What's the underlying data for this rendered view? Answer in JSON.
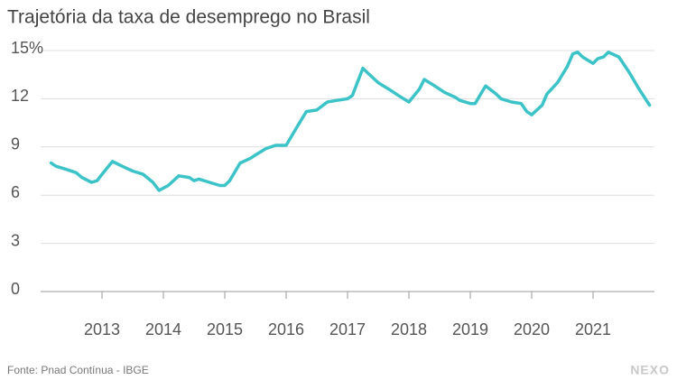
{
  "chart_data": {
    "type": "line",
    "title": "Trajetória da taxa de desemprego no Brasil",
    "source": "Fonte: Pnad Contínua - IBGE",
    "brand": "NEXO",
    "x": [
      2012.17,
      2012.25,
      2012.42,
      2012.58,
      2012.67,
      2012.83,
      2012.92,
      2013.0,
      2013.17,
      2013.33,
      2013.5,
      2013.67,
      2013.83,
      2013.93,
      2014.08,
      2014.25,
      2014.42,
      2014.5,
      2014.58,
      2014.75,
      2014.92,
      2015.0,
      2015.08,
      2015.25,
      2015.42,
      2015.5,
      2015.67,
      2015.83,
      2016.0,
      2016.17,
      2016.33,
      2016.5,
      2016.67,
      2016.83,
      2017.0,
      2017.08,
      2017.25,
      2017.33,
      2017.5,
      2017.67,
      2017.83,
      2018.0,
      2018.17,
      2018.25,
      2018.42,
      2018.58,
      2018.75,
      2018.83,
      2019.0,
      2019.08,
      2019.17,
      2019.25,
      2019.42,
      2019.5,
      2019.67,
      2019.83,
      2019.92,
      2020.0,
      2020.17,
      2020.25,
      2020.42,
      2020.58,
      2020.67,
      2020.75,
      2020.83,
      2021.0,
      2021.08,
      2021.17,
      2021.25,
      2021.42,
      2021.58,
      2021.75,
      2021.92
    ],
    "series": [
      {
        "name": "Taxa de desemprego",
        "color": "#3cc3c8",
        "values": [
          8.0,
          7.8,
          7.6,
          7.4,
          7.1,
          6.8,
          6.9,
          7.3,
          8.1,
          7.8,
          7.5,
          7.3,
          6.8,
          6.3,
          6.6,
          7.2,
          7.1,
          6.9,
          7.0,
          6.8,
          6.6,
          6.6,
          6.9,
          8.0,
          8.3,
          8.5,
          8.9,
          9.1,
          9.1,
          10.2,
          11.2,
          11.3,
          11.8,
          11.9,
          12.0,
          12.2,
          13.9,
          13.6,
          13.0,
          12.6,
          12.2,
          11.8,
          12.6,
          13.2,
          12.8,
          12.4,
          12.1,
          11.9,
          11.7,
          11.7,
          12.3,
          12.8,
          12.3,
          12.0,
          11.8,
          11.7,
          11.2,
          11.0,
          11.6,
          12.3,
          13.0,
          14.0,
          14.8,
          14.9,
          14.6,
          14.2,
          14.5,
          14.6,
          14.9,
          14.6,
          13.7,
          12.6,
          11.6
        ]
      }
    ],
    "xlim": [
      2012,
      2022
    ],
    "xticks": [
      2013,
      2014,
      2015,
      2016,
      2017,
      2018,
      2019,
      2020,
      2021
    ],
    "ylim": [
      0,
      15
    ],
    "yticks": [
      0,
      3,
      6,
      9,
      12,
      {
        "value": 15,
        "label": "15%"
      }
    ],
    "grid": true
  }
}
